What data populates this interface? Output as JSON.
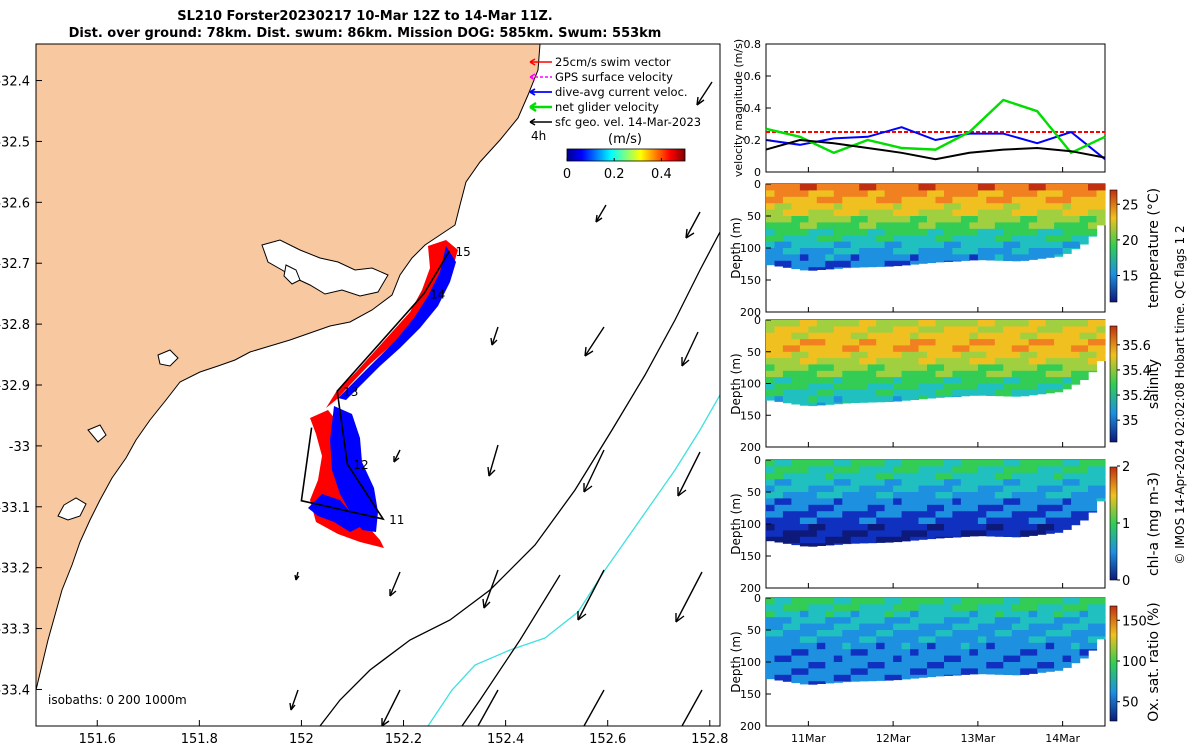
{
  "header": {
    "title_line1": "SL210 Forster20230217 10-Mar 12Z to 14-Mar 11Z.",
    "title_line2": "Dist. over ground: 78km. Dist. swum: 86km. Mission DOG: 585km. Swum: 553km"
  },
  "chart_data": [
    {
      "type": "map",
      "x_ticks": [
        "151.6",
        "151.8",
        "152",
        "152.2",
        "152.4",
        "152.6",
        "152.8"
      ],
      "x_values": [
        151.6,
        151.8,
        152.0,
        152.2,
        152.4,
        152.6,
        152.8
      ],
      "xlim": [
        151.48,
        152.82
      ],
      "y_ticks": [
        "-32.4",
        "-32.5",
        "-32.6",
        "-32.7",
        "-32.8",
        "-32.9",
        "-33",
        "-33.1",
        "-33.2",
        "-33.3",
        "-33.4"
      ],
      "y_values": [
        -32.4,
        -32.5,
        -32.6,
        -32.7,
        -32.8,
        -32.9,
        -33.0,
        -33.1,
        -33.2,
        -33.3,
        -33.4
      ],
      "ylim": [
        -33.46,
        -32.34
      ],
      "legend": [
        {
          "label": "25cm/s swim vector",
          "color": "#ff0000"
        },
        {
          "label": "GPS surface velocity",
          "color": "#ff00ff"
        },
        {
          "label": "dive-avg current veloc.",
          "color": "#0000ff"
        },
        {
          "label": "net glider velocity",
          "color": "#00dd00"
        },
        {
          "label": "sfc geo. vel. 14-Mar-2023",
          "color": "#000000"
        }
      ],
      "legend_note": "4h",
      "colorbar": {
        "label": "(m/s)",
        "ticks": [
          "0",
          "0.2",
          "0.4"
        ]
      },
      "isobath_label": "isobaths: 0   200  1000m",
      "track": [
        {
          "lon": 152.29,
          "lat": -32.68,
          "label": "15"
        },
        {
          "lon": 152.24,
          "lat": -32.75,
          "label": "14"
        },
        {
          "lon": 152.07,
          "lat": -32.91,
          "label": "13"
        },
        {
          "lon": 152.09,
          "lat": -33.03,
          "label": "12"
        },
        {
          "lon": 152.16,
          "lat": -33.12,
          "label": "11"
        },
        {
          "lon": 152.0,
          "lat": -33.09,
          "label": ""
        },
        {
          "lon": 152.02,
          "lat": -32.97,
          "label": ""
        }
      ],
      "colors": {
        "land": "#f8c8a0",
        "track": "#000000",
        "swim": "#ff0000",
        "current": "#0000ff",
        "isobath_1000": "#40e0e0"
      }
    },
    {
      "type": "line",
      "ylabel": "velocity magnitude (m/s)",
      "ylim": [
        0,
        0.8
      ],
      "y_ticks": [
        "0",
        "0.2",
        "0.4",
        "0.6",
        "0.8"
      ],
      "x": [
        10.5,
        10.9,
        11.3,
        11.7,
        12.1,
        12.5,
        12.9,
        13.3,
        13.7,
        14.1,
        14.5
      ],
      "series": [
        {
          "color": "#ff0000",
          "values": [
            0.25,
            0.25,
            0.25,
            0.25,
            0.25,
            0.25,
            0.25,
            0.25,
            0.25,
            0.25,
            0.25
          ]
        },
        {
          "color": "#0000ff",
          "values": [
            0.2,
            0.17,
            0.21,
            0.22,
            0.28,
            0.2,
            0.24,
            0.24,
            0.18,
            0.25,
            0.08
          ]
        },
        {
          "color": "#00dd00",
          "values": [
            0.27,
            0.22,
            0.12,
            0.2,
            0.15,
            0.14,
            0.25,
            0.45,
            0.38,
            0.12,
            0.22
          ]
        },
        {
          "color": "#000000",
          "values": [
            0.14,
            0.2,
            0.18,
            0.15,
            0.12,
            0.08,
            0.12,
            0.14,
            0.15,
            0.13,
            0.09
          ]
        }
      ]
    },
    {
      "type": "heatmap",
      "ylabel": "Depth (m)",
      "y_ticks": [
        "0",
        "50",
        "100",
        "150",
        "200"
      ],
      "colorbar_label": "temperature (°C)",
      "colorbar_ticks": [
        "25",
        "20",
        "15"
      ],
      "range": [
        11,
        27
      ],
      "layers": [
        {
          "depth": 0,
          "value": 25
        },
        {
          "depth": 40,
          "value": 22
        },
        {
          "depth": 80,
          "value": 18
        },
        {
          "depth": 120,
          "value": 15
        }
      ]
    },
    {
      "type": "heatmap",
      "ylabel": "Depth (m)",
      "y_ticks": [
        "0",
        "50",
        "100",
        "150",
        "200"
      ],
      "colorbar_label": "salinity",
      "colorbar_ticks": [
        "35.6",
        "35.4",
        "35.2",
        "35"
      ],
      "range": [
        34.85,
        35.75
      ],
      "layers": [
        {
          "depth": 0,
          "value": 35.4
        },
        {
          "depth": 40,
          "value": 35.55
        },
        {
          "depth": 80,
          "value": 35.35
        },
        {
          "depth": 120,
          "value": 35.2
        }
      ]
    },
    {
      "type": "heatmap",
      "ylabel": "Depth (m)",
      "y_ticks": [
        "0",
        "50",
        "100",
        "150",
        "200"
      ],
      "colorbar_label": "chl-a (mg m-3)",
      "colorbar_ticks": [
        "2",
        "1",
        "0"
      ],
      "range": [
        0,
        2
      ],
      "layers": [
        {
          "depth": 0,
          "value": 1.0
        },
        {
          "depth": 40,
          "value": 0.7
        },
        {
          "depth": 80,
          "value": 0.45
        },
        {
          "depth": 120,
          "value": 0.2
        }
      ]
    },
    {
      "type": "heatmap",
      "ylabel": "Depth (m)",
      "y_ticks": [
        "0",
        "50",
        "100",
        "150",
        "200"
      ],
      "colorbar_label": "Ox. sat. ratio (%)",
      "colorbar_ticks": [
        "150",
        "100",
        "50"
      ],
      "range": [
        30,
        170
      ],
      "layers": [
        {
          "depth": 0,
          "value": 100
        },
        {
          "depth": 40,
          "value": 75
        },
        {
          "depth": 80,
          "value": 68
        },
        {
          "depth": 120,
          "value": 66
        }
      ]
    }
  ],
  "time_axis": {
    "ticks": [
      "11Mar",
      "12Mar",
      "13Mar",
      "14Mar"
    ],
    "values": [
      11,
      12,
      13,
      14
    ],
    "xlim": [
      10.5,
      14.5
    ]
  },
  "side_note": "© IMOS 14-Apr-2024 02:02:08 Hobart time. QC flags 1  2"
}
